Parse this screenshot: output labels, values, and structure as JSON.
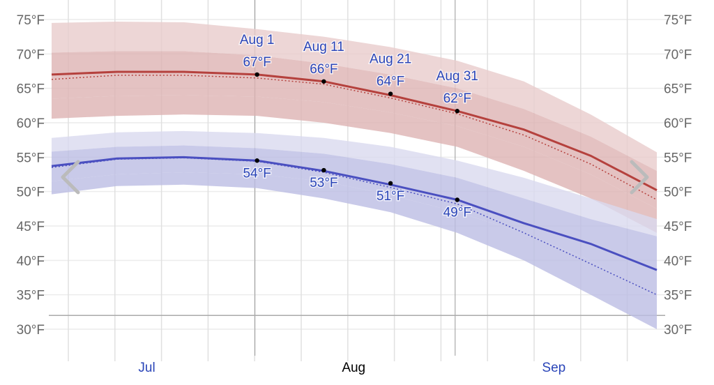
{
  "chart_data": {
    "type": "area",
    "title": "",
    "xlabel": "",
    "ylabel": "",
    "ylim": [
      30,
      75
    ],
    "y_ticks": [
      "30°F",
      "35°F",
      "40°F",
      "45°F",
      "50°F",
      "55°F",
      "60°F",
      "65°F",
      "70°F",
      "75°F"
    ],
    "y_tick_values": [
      30,
      35,
      40,
      45,
      50,
      55,
      60,
      65,
      70,
      75
    ],
    "freezing_line": 32,
    "months": [
      {
        "label": "Jul",
        "date": "Jul 16",
        "color": "#2a45b8"
      },
      {
        "label": "Aug",
        "date": "Aug 16",
        "color": "#000000"
      },
      {
        "label": "Sep",
        "date": "Sep 15",
        "color": "#2a45b8"
      }
    ],
    "highlight_dates": [
      "Aug 1",
      "Aug 31"
    ],
    "x": [
      "Jul 1",
      "Jul 11",
      "Jul 21",
      "Aug 1",
      "Aug 11",
      "Aug 21",
      "Aug 31",
      "Sep 10",
      "Sep 20",
      "Sep 30"
    ],
    "series": [
      {
        "key": "high_p90",
        "values": [
          74.5,
          74.7,
          74.6,
          73.6,
          72.5,
          71.0,
          69.0,
          66.0,
          61.2,
          55.7
        ],
        "color": "#e8cccc"
      },
      {
        "key": "high_p75",
        "values": [
          70.2,
          70.4,
          70.4,
          69.8,
          68.6,
          67.0,
          65.0,
          62.0,
          58.0,
          53.0
        ],
        "color": "#ddb3b3"
      },
      {
        "key": "high_p25",
        "values": [
          63.5,
          63.9,
          64.0,
          63.8,
          63.0,
          61.5,
          59.5,
          56.5,
          52.5,
          47.5
        ],
        "color": "#ddb3b3"
      },
      {
        "key": "high_p10",
        "values": [
          60.6,
          61.0,
          61.2,
          61.0,
          60.0,
          58.5,
          56.5,
          53.0,
          49.0,
          44.0
        ],
        "color": "#e8cccc"
      },
      {
        "key": "high_avg",
        "values": [
          67.0,
          67.4,
          67.4,
          67.0,
          66.0,
          64.0,
          61.7,
          59.0,
          55.2,
          50.2
        ],
        "color": "#b5413d"
      },
      {
        "key": "high_avg_dotted",
        "values": [
          66.3,
          66.9,
          66.9,
          66.5,
          65.6,
          63.6,
          61.3,
          58.2,
          54.0,
          48.8
        ],
        "color": "#b5413d"
      },
      {
        "key": "low_p90",
        "values": [
          57.8,
          58.6,
          58.8,
          58.5,
          57.8,
          56.5,
          54.5,
          52.0,
          49.0,
          46.0
        ],
        "color": "#d9daef"
      },
      {
        "key": "low_p75",
        "values": [
          55.8,
          56.5,
          56.7,
          56.3,
          55.5,
          54.0,
          52.0,
          49.0,
          46.0,
          43.5
        ],
        "color": "#bcbde4"
      },
      {
        "key": "low_p25",
        "values": [
          51.5,
          52.5,
          52.8,
          52.5,
          51.5,
          49.5,
          47.0,
          44.0,
          40.0,
          34.5
        ],
        "color": "#bcbde4"
      },
      {
        "key": "low_p10",
        "values": [
          49.6,
          50.8,
          51.0,
          50.5,
          49.0,
          47.0,
          44.0,
          40.0,
          35.0,
          30.0
        ],
        "color": "#d9daef"
      },
      {
        "key": "low_avg",
        "values": [
          53.7,
          54.8,
          55.0,
          54.5,
          53.0,
          51.0,
          48.8,
          45.4,
          42.4,
          38.6
        ],
        "color": "#4a4fc0"
      },
      {
        "key": "low_avg_dotted",
        "values": [
          53.5,
          54.7,
          54.9,
          54.4,
          52.8,
          50.6,
          48.2,
          44.0,
          39.5,
          35.0
        ],
        "color": "#4a4fc0"
      }
    ],
    "annotations": [
      {
        "date": "Aug 1",
        "date_label": "Aug 1",
        "high": 67,
        "high_label": "67°F",
        "low": 54.5,
        "low_label": "54°F"
      },
      {
        "date": "Aug 11",
        "date_label": "Aug 11",
        "high": 66,
        "high_label": "66°F",
        "low": 53.1,
        "low_label": "53°F"
      },
      {
        "date": "Aug 21",
        "date_label": "Aug 21",
        "high": 64.2,
        "high_label": "64°F",
        "low": 51.2,
        "low_label": "51°F"
      },
      {
        "date": "Aug 31",
        "date_label": "Aug 31",
        "high": 61.7,
        "high_label": "62°F",
        "low": 48.8,
        "low_label": "49°F"
      }
    ]
  },
  "nav": {
    "prev_icon": "chevron-left-icon",
    "next_icon": "chevron-right-icon"
  }
}
